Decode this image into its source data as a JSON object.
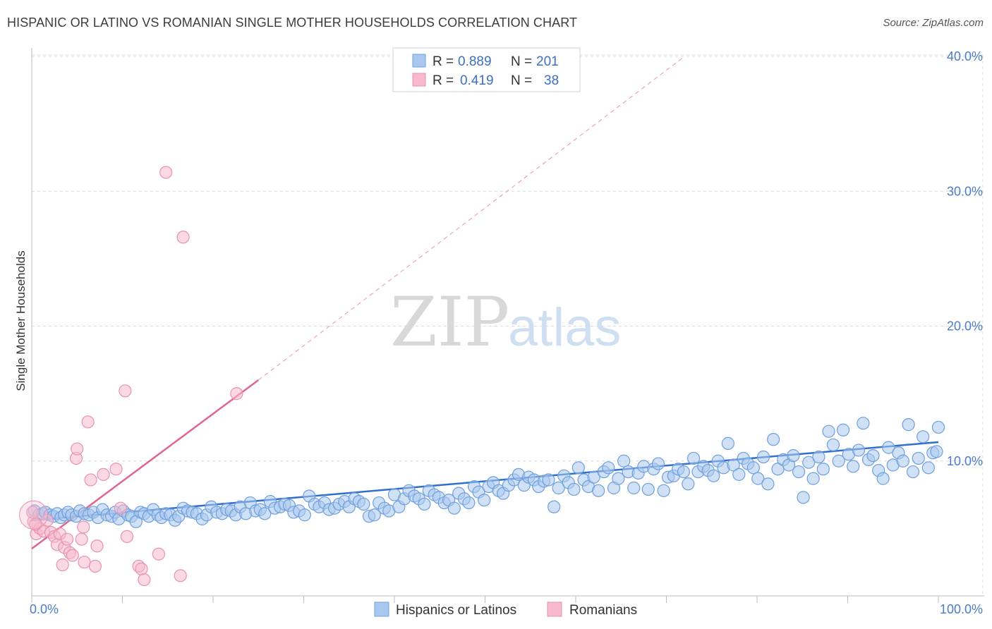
{
  "title": "HISPANIC OR LATINO VS ROMANIAN SINGLE MOTHER HOUSEHOLDS CORRELATION CHART",
  "source": "Source: ZipAtlas.com",
  "watermark": {
    "zip": "ZIP",
    "atlas": "atlas"
  },
  "colors": {
    "blue_fill": "#a9c8ef",
    "blue_stroke": "#6e9fdc",
    "blue_line": "#2f6fd0",
    "pink_fill": "#f6b9cd",
    "pink_stroke": "#e891b0",
    "pink_line": "#e0668f",
    "grid": "#dcdcdc",
    "tick_text": "#4a7cc7"
  },
  "legend": {
    "rows": [
      {
        "r_label": "R =",
        "r_value": "0.889",
        "n_label": "N =",
        "n_value": "201"
      },
      {
        "r_label": "R =",
        "r_value": "0.419",
        "n_label": "N =",
        "n_value": "38"
      }
    ]
  },
  "chart_data": {
    "type": "scatter",
    "title": "HISPANIC OR LATINO VS ROMANIAN SINGLE MOTHER HOUSEHOLDS CORRELATION CHART",
    "xlabel": "",
    "ylabel": "Single Mother Households",
    "xlim": [
      0,
      100
    ],
    "ylim": [
      0,
      40
    ],
    "x_ticks": [
      "0.0%",
      "100.0%"
    ],
    "y_ticks": [
      {
        "value": 10,
        "label": "10.0%"
      },
      {
        "value": 20,
        "label": "20.0%"
      },
      {
        "value": 30,
        "label": "30.0%"
      },
      {
        "value": 40,
        "label": "40.0%"
      }
    ],
    "grid": true,
    "legend_position": "top-center",
    "series": [
      {
        "name": "Hispanics or Latinos",
        "color": "#a9c8ef",
        "trend": {
          "x": [
            0,
            100
          ],
          "y": [
            5.6,
            11.4
          ]
        },
        "points": [
          [
            0.3,
            6.3
          ],
          [
            0.8,
            6.0
          ],
          [
            1.2,
            6.1
          ],
          [
            1.5,
            6.2
          ],
          [
            2.0,
            6.0
          ],
          [
            2.4,
            5.9
          ],
          [
            2.8,
            6.1
          ],
          [
            3.2,
            5.8
          ],
          [
            3.6,
            6.0
          ],
          [
            4.0,
            6.2
          ],
          [
            4.4,
            6.0
          ],
          [
            4.9,
            5.9
          ],
          [
            5.3,
            6.3
          ],
          [
            5.8,
            6.1
          ],
          [
            6.3,
            6.0
          ],
          [
            6.8,
            6.2
          ],
          [
            7.3,
            5.8
          ],
          [
            7.8,
            6.4
          ],
          [
            8.3,
            6.0
          ],
          [
            8.8,
            5.9
          ],
          [
            9.2,
            6.2
          ],
          [
            9.6,
            5.7
          ],
          [
            10.1,
            6.3
          ],
          [
            10.6,
            6.0
          ],
          [
            11.0,
            5.9
          ],
          [
            11.5,
            5.5
          ],
          [
            12.0,
            6.2
          ],
          [
            12.4,
            6.1
          ],
          [
            12.9,
            5.9
          ],
          [
            13.4,
            6.4
          ],
          [
            13.9,
            6.0
          ],
          [
            14.3,
            5.8
          ],
          [
            14.8,
            6.1
          ],
          [
            15.3,
            6.0
          ],
          [
            15.8,
            5.6
          ],
          [
            16.2,
            5.9
          ],
          [
            16.7,
            6.5
          ],
          [
            17.2,
            6.3
          ],
          [
            17.7,
            6.2
          ],
          [
            18.2,
            6.1
          ],
          [
            18.8,
            5.7
          ],
          [
            19.3,
            6.0
          ],
          [
            19.8,
            6.6
          ],
          [
            20.4,
            6.2
          ],
          [
            21.0,
            6.1
          ],
          [
            21.5,
            6.4
          ],
          [
            22.0,
            6.3
          ],
          [
            22.5,
            6.0
          ],
          [
            23.0,
            6.6
          ],
          [
            23.6,
            6.1
          ],
          [
            24.1,
            6.9
          ],
          [
            24.7,
            6.3
          ],
          [
            25.2,
            6.4
          ],
          [
            25.7,
            6.1
          ],
          [
            26.3,
            7.0
          ],
          [
            26.8,
            6.5
          ],
          [
            27.4,
            6.6
          ],
          [
            27.9,
            6.8
          ],
          [
            28.4,
            6.7
          ],
          [
            28.9,
            6.2
          ],
          [
            29.5,
            6.3
          ],
          [
            30.1,
            6.0
          ],
          [
            30.6,
            7.4
          ],
          [
            31.2,
            6.8
          ],
          [
            31.7,
            6.6
          ],
          [
            32.3,
            6.9
          ],
          [
            32.8,
            6.4
          ],
          [
            33.4,
            6.5
          ],
          [
            33.9,
            6.8
          ],
          [
            34.5,
            7.0
          ],
          [
            35.0,
            6.6
          ],
          [
            35.6,
            7.2
          ],
          [
            36.1,
            7.0
          ],
          [
            36.6,
            6.8
          ],
          [
            37.2,
            5.9
          ],
          [
            37.8,
            6.0
          ],
          [
            38.3,
            6.9
          ],
          [
            38.9,
            6.5
          ],
          [
            39.4,
            6.3
          ],
          [
            40.0,
            7.5
          ],
          [
            40.5,
            6.6
          ],
          [
            41.1,
            7.2
          ],
          [
            41.6,
            7.8
          ],
          [
            42.2,
            7.4
          ],
          [
            42.7,
            7.2
          ],
          [
            43.3,
            6.8
          ],
          [
            43.8,
            7.8
          ],
          [
            44.4,
            7.5
          ],
          [
            44.9,
            7.3
          ],
          [
            45.5,
            6.9
          ],
          [
            46.0,
            7.1
          ],
          [
            46.6,
            6.5
          ],
          [
            47.1,
            7.6
          ],
          [
            47.7,
            7.2
          ],
          [
            48.2,
            6.9
          ],
          [
            48.8,
            8.1
          ],
          [
            49.3,
            7.7
          ],
          [
            49.9,
            7.1
          ],
          [
            50.4,
            8.1
          ],
          [
            50.9,
            8.4
          ],
          [
            51.5,
            7.8
          ],
          [
            52.0,
            7.6
          ],
          [
            52.6,
            8.2
          ],
          [
            53.2,
            8.6
          ],
          [
            53.7,
            9.0
          ],
          [
            54.3,
            8.2
          ],
          [
            54.8,
            8.8
          ],
          [
            55.4,
            8.6
          ],
          [
            55.9,
            8.1
          ],
          [
            56.5,
            8.5
          ],
          [
            57.0,
            8.6
          ],
          [
            57.6,
            6.6
          ],
          [
            58.1,
            8.0
          ],
          [
            58.7,
            8.9
          ],
          [
            59.2,
            8.4
          ],
          [
            59.8,
            7.9
          ],
          [
            60.3,
            9.5
          ],
          [
            60.9,
            8.6
          ],
          [
            61.4,
            8.1
          ],
          [
            62.0,
            8.8
          ],
          [
            62.5,
            7.8
          ],
          [
            63.1,
            9.2
          ],
          [
            63.6,
            9.5
          ],
          [
            64.2,
            8.0
          ],
          [
            64.7,
            8.7
          ],
          [
            65.3,
            10.0
          ],
          [
            65.8,
            9.2
          ],
          [
            66.4,
            8.0
          ],
          [
            66.9,
            9.1
          ],
          [
            67.5,
            9.6
          ],
          [
            68.0,
            7.9
          ],
          [
            68.6,
            9.4
          ],
          [
            69.1,
            9.8
          ],
          [
            69.7,
            7.8
          ],
          [
            70.2,
            8.8
          ],
          [
            70.8,
            8.9
          ],
          [
            71.3,
            9.4
          ],
          [
            71.9,
            9.2
          ],
          [
            72.4,
            8.3
          ],
          [
            73.0,
            10.2
          ],
          [
            73.5,
            9.2
          ],
          [
            74.1,
            9.6
          ],
          [
            74.6,
            9.3
          ],
          [
            75.2,
            8.9
          ],
          [
            75.7,
            10.0
          ],
          [
            76.3,
            9.5
          ],
          [
            76.8,
            11.3
          ],
          [
            77.4,
            9.7
          ],
          [
            78.0,
            9.0
          ],
          [
            78.5,
            10.2
          ],
          [
            79.0,
            9.8
          ],
          [
            79.6,
            9.5
          ],
          [
            80.1,
            8.7
          ],
          [
            80.7,
            10.3
          ],
          [
            81.2,
            8.3
          ],
          [
            81.8,
            11.6
          ],
          [
            82.3,
            9.4
          ],
          [
            82.9,
            10.1
          ],
          [
            83.5,
            9.7
          ],
          [
            84.0,
            10.4
          ],
          [
            84.6,
            9.2
          ],
          [
            85.1,
            7.3
          ],
          [
            85.7,
            9.9
          ],
          [
            86.2,
            8.7
          ],
          [
            86.8,
            10.3
          ],
          [
            87.3,
            9.4
          ],
          [
            87.9,
            12.2
          ],
          [
            88.4,
            11.2
          ],
          [
            89.0,
            10.0
          ],
          [
            89.5,
            12.3
          ],
          [
            90.1,
            10.5
          ],
          [
            90.6,
            9.6
          ],
          [
            91.2,
            10.8
          ],
          [
            91.7,
            12.8
          ],
          [
            92.3,
            10.1
          ],
          [
            92.8,
            10.4
          ],
          [
            93.4,
            9.3
          ],
          [
            93.9,
            8.7
          ],
          [
            94.5,
            11.0
          ],
          [
            95.0,
            9.7
          ],
          [
            95.6,
            10.6
          ],
          [
            96.1,
            10.0
          ],
          [
            96.7,
            12.7
          ],
          [
            97.2,
            9.2
          ],
          [
            97.8,
            10.2
          ],
          [
            98.3,
            11.8
          ],
          [
            98.9,
            9.5
          ],
          [
            99.4,
            10.6
          ],
          [
            100.0,
            12.5
          ],
          [
            99.8,
            10.7
          ]
        ]
      },
      {
        "name": "Romanians",
        "color": "#f6b9cd",
        "trend": {
          "x": [
            0,
            25
          ],
          "y": [
            3.5,
            16.0
          ]
        },
        "trend_extension": {
          "x": [
            25,
            72
          ],
          "y": [
            16.0,
            40.0
          ]
        },
        "points": [
          [
            0.2,
            5.5
          ],
          [
            0.5,
            4.6
          ],
          [
            0.9,
            5.0
          ],
          [
            1.3,
            4.8
          ],
          [
            1.7,
            5.6
          ],
          [
            2.1,
            4.7
          ],
          [
            2.5,
            4.4
          ],
          [
            2.8,
            3.8
          ],
          [
            3.1,
            4.6
          ],
          [
            3.4,
            2.3
          ],
          [
            3.6,
            3.6
          ],
          [
            3.9,
            4.2
          ],
          [
            4.2,
            3.2
          ],
          [
            4.5,
            3.0
          ],
          [
            4.9,
            10.2
          ],
          [
            5.0,
            10.9
          ],
          [
            5.5,
            4.2
          ],
          [
            5.7,
            5.1
          ],
          [
            5.8,
            2.5
          ],
          [
            6.2,
            12.9
          ],
          [
            6.5,
            8.6
          ],
          [
            7.0,
            2.2
          ],
          [
            7.2,
            3.7
          ],
          [
            7.9,
            9.0
          ],
          [
            9.3,
            9.4
          ],
          [
            9.8,
            6.5
          ],
          [
            10.3,
            15.2
          ],
          [
            10.5,
            4.4
          ],
          [
            11.8,
            2.2
          ],
          [
            12.1,
            2.0
          ],
          [
            12.4,
            1.2
          ],
          [
            14.0,
            3.1
          ],
          [
            14.8,
            31.4
          ],
          [
            16.4,
            1.5
          ],
          [
            16.7,
            26.6
          ],
          [
            22.6,
            15.0
          ],
          [
            0.1,
            6.2
          ],
          [
            0.4,
            5.3
          ]
        ]
      }
    ]
  },
  "bottom_legend": [
    {
      "label": "Hispanics or Latinos"
    },
    {
      "label": "Romanians"
    }
  ]
}
